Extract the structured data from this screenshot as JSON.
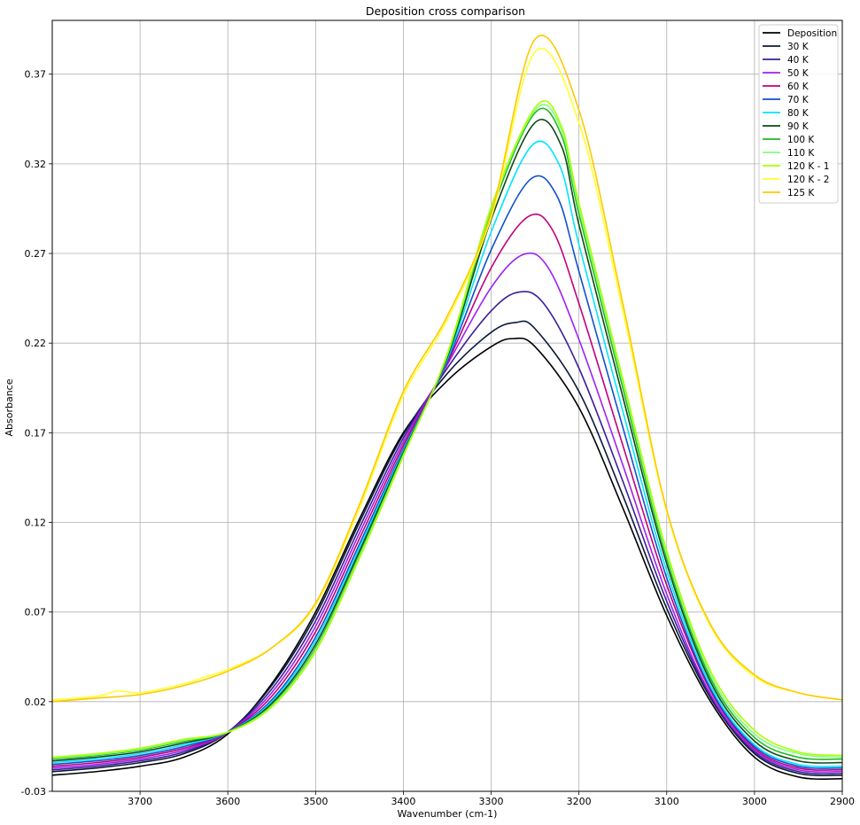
{
  "chart_data": {
    "type": "line",
    "title": "Deposition cross comparison",
    "xlabel": "Wavenumber (cm-1)",
    "ylabel": "Absorbance",
    "xlim": [
      3800,
      2900
    ],
    "x_reversed": true,
    "ylim": [
      -0.03,
      0.4
    ],
    "xticks": [
      3700,
      3600,
      3500,
      3400,
      3300,
      3200,
      3100,
      3000,
      2900
    ],
    "yticks": [
      -0.03,
      0.02,
      0.07,
      0.12,
      0.17,
      0.22,
      0.27,
      0.32,
      0.37
    ],
    "grid": true,
    "legend_position": "top-right",
    "series": [
      {
        "name": "Deposition",
        "color": "#000000",
        "values": [
          [
            3800,
            -0.021
          ],
          [
            3750,
            -0.019
          ],
          [
            3700,
            -0.016
          ],
          [
            3650,
            -0.011
          ],
          [
            3600,
            0.002
          ],
          [
            3550,
            0.03
          ],
          [
            3500,
            0.07
          ],
          [
            3450,
            0.122
          ],
          [
            3400,
            0.17
          ],
          [
            3350,
            0.199
          ],
          [
            3300,
            0.218
          ],
          [
            3275,
            0.2225
          ],
          [
            3250,
            0.218
          ],
          [
            3200,
            0.184
          ],
          [
            3150,
            0.128
          ],
          [
            3100,
            0.068
          ],
          [
            3050,
            0.02
          ],
          [
            3000,
            -0.011
          ],
          [
            2950,
            -0.022
          ],
          [
            2900,
            -0.023
          ]
        ]
      },
      {
        "name": "30 K",
        "color": "#0b1a3a",
        "values": [
          [
            3800,
            -0.019
          ],
          [
            3750,
            -0.017
          ],
          [
            3700,
            -0.014
          ],
          [
            3650,
            -0.009
          ],
          [
            3600,
            0.003
          ],
          [
            3550,
            0.029
          ],
          [
            3500,
            0.068
          ],
          [
            3450,
            0.12
          ],
          [
            3400,
            0.169
          ],
          [
            3350,
            0.203
          ],
          [
            3300,
            0.226
          ],
          [
            3272,
            0.2315
          ],
          [
            3250,
            0.228
          ],
          [
            3200,
            0.193
          ],
          [
            3150,
            0.135
          ],
          [
            3100,
            0.072
          ],
          [
            3050,
            0.022
          ],
          [
            3000,
            -0.009
          ],
          [
            2950,
            -0.02
          ],
          [
            2900,
            -0.021
          ]
        ]
      },
      {
        "name": "40 K",
        "color": "#3c1f9a",
        "values": [
          [
            3800,
            -0.018
          ],
          [
            3750,
            -0.016
          ],
          [
            3700,
            -0.013
          ],
          [
            3650,
            -0.008
          ],
          [
            3600,
            0.003
          ],
          [
            3550,
            0.027
          ],
          [
            3500,
            0.065
          ],
          [
            3450,
            0.117
          ],
          [
            3400,
            0.167
          ],
          [
            3350,
            0.206
          ],
          [
            3300,
            0.238
          ],
          [
            3268,
            0.2485
          ],
          [
            3240,
            0.242
          ],
          [
            3200,
            0.206
          ],
          [
            3150,
            0.143
          ],
          [
            3100,
            0.076
          ],
          [
            3050,
            0.023
          ],
          [
            3000,
            -0.008
          ],
          [
            2950,
            -0.019
          ],
          [
            2900,
            -0.02
          ]
        ]
      },
      {
        "name": "50 K",
        "color": "#a020f0",
        "values": [
          [
            3800,
            -0.017
          ],
          [
            3750,
            -0.015
          ],
          [
            3700,
            -0.012
          ],
          [
            3650,
            -0.007
          ],
          [
            3600,
            0.003
          ],
          [
            3550,
            0.025
          ],
          [
            3500,
            0.062
          ],
          [
            3450,
            0.114
          ],
          [
            3400,
            0.165
          ],
          [
            3350,
            0.208
          ],
          [
            3300,
            0.251
          ],
          [
            3263,
            0.2695
          ],
          [
            3235,
            0.262
          ],
          [
            3200,
            0.222
          ],
          [
            3150,
            0.152
          ],
          [
            3100,
            0.08
          ],
          [
            3050,
            0.024
          ],
          [
            3000,
            -0.007
          ],
          [
            2950,
            -0.018
          ],
          [
            2900,
            -0.019
          ]
        ]
      },
      {
        "name": "60 K",
        "color": "#c0007a",
        "values": [
          [
            3800,
            -0.016
          ],
          [
            3750,
            -0.014
          ],
          [
            3700,
            -0.011
          ],
          [
            3650,
            -0.006
          ],
          [
            3600,
            0.003
          ],
          [
            3550,
            0.023
          ],
          [
            3500,
            0.059
          ],
          [
            3450,
            0.111
          ],
          [
            3400,
            0.163
          ],
          [
            3350,
            0.209
          ],
          [
            3300,
            0.262
          ],
          [
            3258,
            0.2905
          ],
          [
            3230,
            0.283
          ],
          [
            3200,
            0.242
          ],
          [
            3150,
            0.163
          ],
          [
            3100,
            0.085
          ],
          [
            3050,
            0.026
          ],
          [
            3000,
            -0.006
          ],
          [
            2950,
            -0.017
          ],
          [
            2900,
            -0.018
          ]
        ]
      },
      {
        "name": "70 K",
        "color": "#1050d0",
        "values": [
          [
            3800,
            -0.015
          ],
          [
            3750,
            -0.013
          ],
          [
            3700,
            -0.01
          ],
          [
            3650,
            -0.005
          ],
          [
            3600,
            0.003
          ],
          [
            3550,
            0.021
          ],
          [
            3500,
            0.056
          ],
          [
            3450,
            0.108
          ],
          [
            3400,
            0.161
          ],
          [
            3350,
            0.21
          ],
          [
            3300,
            0.272
          ],
          [
            3255,
            0.3115
          ],
          [
            3225,
            0.302
          ],
          [
            3200,
            0.26
          ],
          [
            3150,
            0.173
          ],
          [
            3100,
            0.089
          ],
          [
            3050,
            0.027
          ],
          [
            3000,
            -0.005
          ],
          [
            2950,
            -0.016
          ],
          [
            2900,
            -0.017
          ]
        ]
      },
      {
        "name": "80 K",
        "color": "#00e5ff",
        "values": [
          [
            3800,
            -0.014
          ],
          [
            3750,
            -0.012
          ],
          [
            3700,
            -0.009
          ],
          [
            3650,
            -0.004
          ],
          [
            3600,
            0.003
          ],
          [
            3550,
            0.02
          ],
          [
            3500,
            0.054
          ],
          [
            3450,
            0.106
          ],
          [
            3400,
            0.16
          ],
          [
            3350,
            0.211
          ],
          [
            3300,
            0.282
          ],
          [
            3253,
            0.3305
          ],
          [
            3222,
            0.319
          ],
          [
            3200,
            0.275
          ],
          [
            3150,
            0.182
          ],
          [
            3100,
            0.093
          ],
          [
            3050,
            0.029
          ],
          [
            3000,
            -0.004
          ],
          [
            2950,
            -0.015
          ],
          [
            2900,
            -0.016
          ]
        ]
      },
      {
        "name": "90 K",
        "color": "#0e4a16",
        "values": [
          [
            3800,
            -0.013
          ],
          [
            3750,
            -0.011
          ],
          [
            3700,
            -0.008
          ],
          [
            3650,
            -0.003
          ],
          [
            3600,
            0.003
          ],
          [
            3550,
            0.019
          ],
          [
            3500,
            0.052
          ],
          [
            3450,
            0.104
          ],
          [
            3400,
            0.159
          ],
          [
            3350,
            0.212
          ],
          [
            3300,
            0.289
          ],
          [
            3251,
            0.3425
          ],
          [
            3220,
            0.33
          ],
          [
            3200,
            0.286
          ],
          [
            3150,
            0.19
          ],
          [
            3100,
            0.097
          ],
          [
            3050,
            0.031
          ],
          [
            3000,
            -0.002
          ],
          [
            2950,
            -0.013
          ],
          [
            2900,
            -0.014
          ]
        ]
      },
      {
        "name": "100 K",
        "color": "#22b922",
        "values": [
          [
            3800,
            -0.012
          ],
          [
            3750,
            -0.01
          ],
          [
            3700,
            -0.007
          ],
          [
            3650,
            -0.002
          ],
          [
            3600,
            0.003
          ],
          [
            3550,
            0.018
          ],
          [
            3500,
            0.05
          ],
          [
            3450,
            0.102
          ],
          [
            3400,
            0.158
          ],
          [
            3350,
            0.213
          ],
          [
            3300,
            0.293
          ],
          [
            3250,
            0.3485
          ],
          [
            3220,
            0.336
          ],
          [
            3200,
            0.292
          ],
          [
            3150,
            0.195
          ],
          [
            3100,
            0.1
          ],
          [
            3050,
            0.033
          ],
          [
            3000,
            0.0
          ],
          [
            2950,
            -0.011
          ],
          [
            2900,
            -0.012
          ]
        ]
      },
      {
        "name": "110 K",
        "color": "#80ff80",
        "values": [
          [
            3800,
            -0.0115
          ],
          [
            3750,
            -0.0095
          ],
          [
            3700,
            -0.0065
          ],
          [
            3650,
            -0.0015
          ],
          [
            3600,
            0.003
          ],
          [
            3550,
            0.0175
          ],
          [
            3500,
            0.049
          ],
          [
            3450,
            0.101
          ],
          [
            3400,
            0.1575
          ],
          [
            3350,
            0.2135
          ],
          [
            3300,
            0.295
          ],
          [
            3249,
            0.3505
          ],
          [
            3220,
            0.339
          ],
          [
            3200,
            0.295
          ],
          [
            3150,
            0.198
          ],
          [
            3100,
            0.102
          ],
          [
            3050,
            0.035
          ],
          [
            3000,
            0.002
          ],
          [
            2950,
            -0.009
          ],
          [
            2900,
            -0.011
          ]
        ]
      },
      {
        "name": "120 K - 1",
        "color": "#aaff00",
        "values": [
          [
            3800,
            -0.011
          ],
          [
            3750,
            -0.009
          ],
          [
            3700,
            -0.006
          ],
          [
            3650,
            -0.001
          ],
          [
            3600,
            0.003
          ],
          [
            3550,
            0.017
          ],
          [
            3500,
            0.048
          ],
          [
            3450,
            0.1
          ],
          [
            3400,
            0.157
          ],
          [
            3350,
            0.214
          ],
          [
            3300,
            0.296
          ],
          [
            3248,
            0.3525
          ],
          [
            3220,
            0.341
          ],
          [
            3200,
            0.298
          ],
          [
            3150,
            0.2
          ],
          [
            3100,
            0.104
          ],
          [
            3050,
            0.037
          ],
          [
            3000,
            0.004
          ],
          [
            2950,
            -0.008
          ],
          [
            2900,
            -0.01
          ]
        ]
      },
      {
        "name": "120 K - 2",
        "color": "#ffff33",
        "values": [
          [
            3800,
            0.021
          ],
          [
            3750,
            0.023
          ],
          [
            3725,
            0.026
          ],
          [
            3700,
            0.025
          ],
          [
            3650,
            0.03
          ],
          [
            3625,
            0.034
          ],
          [
            3600,
            0.038
          ],
          [
            3550,
            0.05
          ],
          [
            3500,
            0.074
          ],
          [
            3450,
            0.128
          ],
          [
            3400,
            0.191
          ],
          [
            3350,
            0.233
          ],
          [
            3300,
            0.29
          ],
          [
            3250,
            0.3825
          ],
          [
            3200,
            0.343
          ],
          [
            3150,
            0.238
          ],
          [
            3100,
            0.126
          ],
          [
            3050,
            0.062
          ],
          [
            3000,
            0.034
          ],
          [
            2950,
            0.025
          ],
          [
            2900,
            0.021
          ]
        ]
      },
      {
        "name": "125 K",
        "color": "#ffc800",
        "values": [
          [
            3800,
            0.02
          ],
          [
            3750,
            0.022
          ],
          [
            3700,
            0.024
          ],
          [
            3650,
            0.029
          ],
          [
            3600,
            0.037
          ],
          [
            3550,
            0.05
          ],
          [
            3500,
            0.075
          ],
          [
            3450,
            0.13
          ],
          [
            3400,
            0.193
          ],
          [
            3350,
            0.235
          ],
          [
            3300,
            0.292
          ],
          [
            3250,
            0.3895
          ],
          [
            3200,
            0.35
          ],
          [
            3150,
            0.242
          ],
          [
            3100,
            0.127
          ],
          [
            3050,
            0.063
          ],
          [
            3000,
            0.035
          ],
          [
            2950,
            0.025
          ],
          [
            2900,
            0.021
          ]
        ]
      }
    ]
  }
}
